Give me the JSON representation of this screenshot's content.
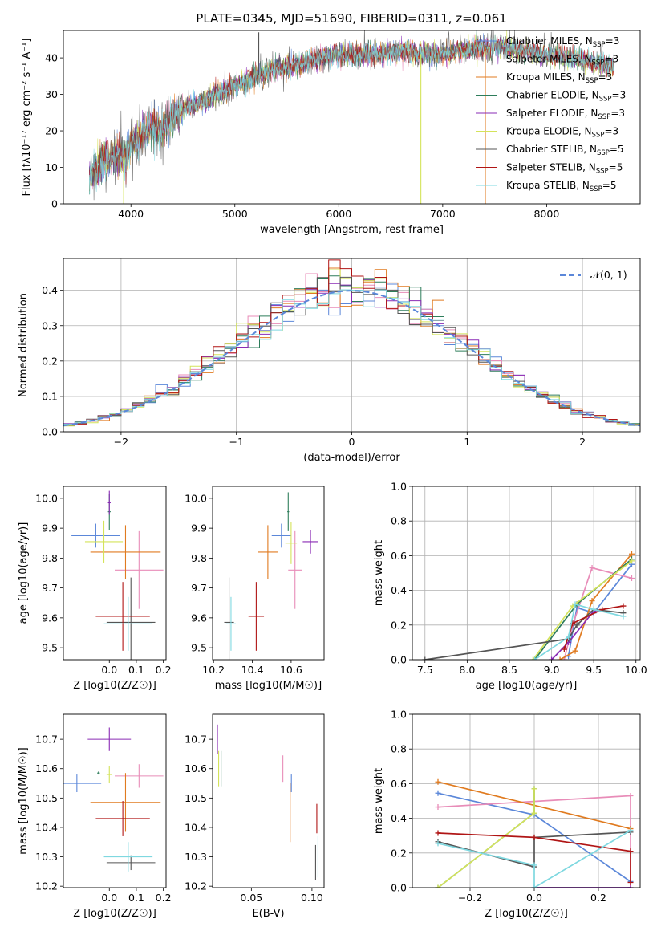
{
  "figure": {
    "title": "PLATE=0345, MJD=51690, FIBERID=0311, z=0.061"
  },
  "legend_text": {
    "prefix": "N",
    "ssp": "SSP",
    "normal": "𝒩(0, 1)"
  },
  "colors": {
    "Chabrier MILES": "#5b87d9",
    "Salpeter MILES": "#e88cb8",
    "Kroupa MILES": "#e07b20",
    "Chabrier ELODIE": "#2e7d5b",
    "Salpeter ELODIE": "#8a2bb5",
    "Kroupa ELODIE": "#d4e35a",
    "Chabrier STELIB": "#555555",
    "Salpeter STELIB": "#b01515",
    "Kroupa STELIB": "#7fd8e0"
  },
  "chart_data": [
    {
      "type": "line",
      "id": "spectrum",
      "title": "PLATE=0345, MJD=51690, FIBERID=0311, z=0.061",
      "xlabel": "wavelength [Angstrom, rest frame]",
      "ylabel": "Flux [fλ10⁻¹⁷ erg cm⁻² s⁻¹ A⁻¹]",
      "xlim": [
        3350,
        8900
      ],
      "ylim": [
        0,
        47.5
      ],
      "xticks": [
        4000,
        5000,
        6000,
        7000,
        8000
      ],
      "yticks": [
        0,
        10,
        20,
        30,
        40
      ],
      "grid": false,
      "legend_placement": "right",
      "legend": [
        {
          "label": "Chabrier MILES, N",
          "n": "3"
        },
        {
          "label": "Salpeter MILES, N",
          "n": "3"
        },
        {
          "label": "Kroupa MILES, N",
          "n": "3"
        },
        {
          "label": "Chabrier ELODIE, N",
          "n": "3"
        },
        {
          "label": "Salpeter ELODIE, N",
          "n": "3"
        },
        {
          "label": "Kroupa ELODIE, N",
          "n": "3"
        },
        {
          "label": "Chabrier STELIB, N",
          "n": "5"
        },
        {
          "label": "Salpeter STELIB, N",
          "n": "5"
        },
        {
          "label": "Kroupa STELIB, N",
          "n": "5"
        }
      ],
      "continuum": {
        "x": [
          3600,
          3700,
          3800,
          3900,
          3950,
          4000,
          4100,
          4200,
          4300,
          4400,
          4500,
          4700,
          4900,
          5000,
          5200,
          5400,
          5600,
          5800,
          6000,
          6200,
          6400,
          6600,
          6800,
          7000,
          7200,
          7400,
          7600,
          7800,
          8000,
          8200,
          8400,
          8600
        ],
        "y": [
          8,
          10,
          13,
          14,
          12,
          16,
          19,
          21,
          20,
          24,
          26,
          28,
          31,
          32,
          35,
          37,
          38,
          40,
          41,
          41,
          41,
          42,
          41,
          41,
          42,
          43,
          43,
          42,
          41,
          40,
          39,
          38
        ]
      },
      "spikes": [
        {
          "x": 3930,
          "y": 0,
          "color": "Kroupa ELODIE"
        },
        {
          "x": 5230,
          "y": 47,
          "color": "Chabrier STELIB"
        },
        {
          "x": 6790,
          "y": 0,
          "color": "Kroupa ELODIE"
        },
        {
          "x": 7410,
          "y": 0,
          "color": "Kroupa MILES"
        }
      ]
    },
    {
      "type": "histogram",
      "id": "residuals",
      "xlabel": "(data-model)/error",
      "ylabel": "Normed distribution",
      "xlim": [
        -2.5,
        2.5
      ],
      "ylim": [
        0,
        0.49
      ],
      "xticks": [
        -2,
        -1,
        0,
        1,
        2
      ],
      "yticks": [
        0.0,
        0.1,
        0.2,
        0.3,
        0.4
      ],
      "grid": true,
      "legend_placement": "top-right",
      "bin_width": 0.1,
      "reference_curve": {
        "name": "𝒩(0, 1)",
        "mean": 0,
        "std": 1,
        "style": "dashed"
      }
    },
    {
      "type": "scatter",
      "id": "age-vs-Z",
      "xlabel": "Z [log10(Z/Z☉)]",
      "ylabel": "age  [log10(age/yr)]",
      "xlim": [
        -0.17,
        0.21
      ],
      "ylim": [
        9.46,
        10.04
      ],
      "xticks": [
        0.0,
        0.1,
        0.2
      ],
      "yticks": [
        9.5,
        9.6,
        9.7,
        9.8,
        9.9,
        10.0
      ],
      "grid": false,
      "points": [
        {
          "m": "Chabrier MILES",
          "x": -0.05,
          "xe": 0.09,
          "y": 9.875,
          "ye": 0.04
        },
        {
          "m": "Salpeter MILES",
          "x": 0.11,
          "xe": 0.09,
          "y": 9.76,
          "ye": 0.13
        },
        {
          "m": "Kroupa MILES",
          "x": 0.06,
          "xe": 0.13,
          "y": 9.82,
          "ye": 0.09
        },
        {
          "m": "Chabrier ELODIE",
          "x": 0.0,
          "xe": 0.005,
          "y": 9.955,
          "ye": 0.06
        },
        {
          "m": "Salpeter ELODIE",
          "x": 0.0,
          "xe": 0.005,
          "y": 9.985,
          "ye": 0.04
        },
        {
          "m": "Kroupa ELODIE",
          "x": -0.02,
          "xe": 0.07,
          "y": 9.855,
          "ye": 0.07
        },
        {
          "m": "Chabrier STELIB",
          "x": 0.08,
          "xe": 0.09,
          "y": 9.585,
          "ye": 0.15
        },
        {
          "m": "Salpeter STELIB",
          "x": 0.05,
          "xe": 0.1,
          "y": 9.605,
          "ye": 0.115
        },
        {
          "m": "Kroupa STELIB",
          "x": 0.07,
          "xe": 0.09,
          "y": 9.58,
          "ye": 0.09
        }
      ]
    },
    {
      "type": "scatter",
      "id": "age-vs-mass",
      "xlabel": "mass [log10(M/M☉)]",
      "ylabel": "",
      "xlim": [
        10.195,
        10.77
      ],
      "ylim": [
        9.46,
        10.04
      ],
      "xticks": [
        10.2,
        10.4,
        10.6
      ],
      "yticks": [
        9.5,
        9.6,
        9.7,
        9.8,
        9.9,
        10.0
      ],
      "grid": false,
      "points": [
        {
          "m": "Chabrier MILES",
          "x": 10.55,
          "xe": 0.05,
          "y": 9.875,
          "ye": 0.04
        },
        {
          "m": "Salpeter MILES",
          "x": 10.62,
          "xe": 0.035,
          "y": 9.76,
          "ye": 0.13
        },
        {
          "m": "Kroupa MILES",
          "x": 10.48,
          "xe": 0.05,
          "y": 9.82,
          "ye": 0.09
        },
        {
          "m": "Chabrier ELODIE",
          "x": 10.585,
          "xe": 0.005,
          "y": 9.955,
          "ye": 0.065
        },
        {
          "m": "Salpeter ELODIE",
          "x": 10.7,
          "xe": 0.04,
          "y": 9.855,
          "ye": 0.04
        },
        {
          "m": "Kroupa ELODIE",
          "x": 10.6,
          "xe": 0.03,
          "y": 9.85,
          "ye": 0.07
        },
        {
          "m": "Chabrier STELIB",
          "x": 10.28,
          "xe": 0.025,
          "y": 9.585,
          "ye": 0.15
        },
        {
          "m": "Salpeter STELIB",
          "x": 10.42,
          "xe": 0.04,
          "y": 9.605,
          "ye": 0.115
        },
        {
          "m": "Kroupa STELIB",
          "x": 10.29,
          "xe": 0.025,
          "y": 9.58,
          "ye": 0.09
        }
      ]
    },
    {
      "type": "line",
      "id": "weight-vs-age",
      "xlabel": "age  [log10(age/yr)]",
      "ylabel": "mass weight",
      "xlim": [
        7.35,
        10.05
      ],
      "ylim": [
        0,
        1
      ],
      "xticks": [
        7.5,
        8.0,
        8.5,
        9.0,
        9.5,
        10.0
      ],
      "yticks": [
        0.0,
        0.2,
        0.4,
        0.6,
        0.8,
        1.0
      ],
      "grid": true,
      "series": [
        {
          "m": "Chabrier MILES",
          "x": [
            9.2,
            9.3,
            9.5,
            9.95
          ],
          "y": [
            0.02,
            0.3,
            0.27,
            0.55
          ]
        },
        {
          "m": "Salpeter MILES",
          "x": [
            9.15,
            9.25,
            9.48,
            9.95
          ],
          "y": [
            0.0,
            0.2,
            0.53,
            0.47
          ]
        },
        {
          "m": "Kroupa MILES",
          "x": [
            9.1,
            9.28,
            9.48,
            9.95
          ],
          "y": [
            0.0,
            0.05,
            0.34,
            0.61
          ]
        },
        {
          "m": "Chabrier ELODIE",
          "x": [
            8.8,
            9.3,
            9.95
          ],
          "y": [
            0.0,
            0.32,
            0.58
          ]
        },
        {
          "m": "Salpeter ELODIE",
          "x": [
            9.0,
            9.2,
            9.5
          ],
          "y": [
            0.0,
            0.1,
            0.28
          ]
        },
        {
          "m": "Kroupa ELODIE",
          "x": [
            8.78,
            9.25,
            9.95
          ],
          "y": [
            0.0,
            0.31,
            0.57
          ]
        },
        {
          "m": "Chabrier STELIB",
          "x": [
            7.5,
            9.2,
            9.3,
            9.5,
            9.85
          ],
          "y": [
            0.0,
            0.12,
            0.2,
            0.29,
            0.27
          ]
        },
        {
          "m": "Salpeter STELIB",
          "x": [
            9.15,
            9.25,
            9.6,
            9.85
          ],
          "y": [
            0.06,
            0.21,
            0.29,
            0.31
          ]
        },
        {
          "m": "Kroupa STELIB",
          "x": [
            8.8,
            9.2,
            9.28,
            9.5,
            9.85
          ],
          "y": [
            0.0,
            0.13,
            0.32,
            0.29,
            0.25
          ]
        }
      ]
    },
    {
      "type": "scatter",
      "id": "mass-vs-Z",
      "xlabel": "Z [log10(Z/Z☉)]",
      "ylabel": "mass [log10(M/M☉)]",
      "xlim": [
        -0.17,
        0.21
      ],
      "ylim": [
        10.195,
        10.785
      ],
      "xticks": [
        0.0,
        0.1,
        0.2
      ],
      "yticks": [
        10.2,
        10.3,
        10.4,
        10.5,
        10.6,
        10.7
      ],
      "grid": false,
      "points": [
        {
          "m": "Chabrier MILES",
          "x": -0.12,
          "xe": 0.09,
          "y": 10.55,
          "ye": 0.03
        },
        {
          "m": "Salpeter MILES",
          "x": 0.11,
          "xe": 0.09,
          "y": 10.575,
          "ye": 0.04
        },
        {
          "m": "Kroupa MILES",
          "x": 0.06,
          "xe": 0.13,
          "y": 10.485,
          "ye": 0.1
        },
        {
          "m": "Chabrier ELODIE",
          "x": -0.04,
          "xe": 0.005,
          "y": 10.585,
          "ye": 0.005
        },
        {
          "m": "Salpeter ELODIE",
          "x": 0.0,
          "xe": 0.08,
          "y": 10.7,
          "ye": 0.04
        },
        {
          "m": "Kroupa ELODIE",
          "x": 0.0,
          "xe": 0.01,
          "y": 10.58,
          "ye": 0.03
        },
        {
          "m": "Chabrier STELIB",
          "x": 0.08,
          "xe": 0.09,
          "y": 10.28,
          "ye": 0.025
        },
        {
          "m": "Salpeter STELIB",
          "x": 0.05,
          "xe": 0.1,
          "y": 10.43,
          "ye": 0.06
        },
        {
          "m": "Kroupa STELIB",
          "x": 0.07,
          "xe": 0.09,
          "y": 10.3,
          "ye": 0.05
        }
      ]
    },
    {
      "type": "scatter",
      "id": "mass-vs-ebv",
      "xlabel": "E(B-V)",
      "ylabel": "",
      "xlim": [
        0.018,
        0.11
      ],
      "ylim": [
        10.195,
        10.785
      ],
      "xticks": [
        0.05,
        0.1
      ],
      "yticks": [
        10.2,
        10.3,
        10.4,
        10.5,
        10.6,
        10.7
      ],
      "grid": false,
      "points": [
        {
          "m": "Chabrier MILES",
          "x": 0.083,
          "xe": 0.0,
          "y": 10.55,
          "ye": 0.03
        },
        {
          "m": "Salpeter MILES",
          "x": 0.076,
          "xe": 0.0,
          "y": 10.6,
          "ye": 0.045
        },
        {
          "m": "Kroupa MILES",
          "x": 0.082,
          "xe": 0.0,
          "y": 10.45,
          "ye": 0.1
        },
        {
          "m": "Chabrier ELODIE",
          "x": 0.025,
          "xe": 0.0,
          "y": 10.6,
          "ye": 0.06
        },
        {
          "m": "Salpeter ELODIE",
          "x": 0.022,
          "xe": 0.0,
          "y": 10.7,
          "ye": 0.05
        },
        {
          "m": "Kroupa ELODIE",
          "x": 0.023,
          "xe": 0.0,
          "y": 10.6,
          "ye": 0.06
        },
        {
          "m": "Chabrier STELIB",
          "x": 0.103,
          "xe": 0.0,
          "y": 10.28,
          "ye": 0.06
        },
        {
          "m": "Salpeter STELIB",
          "x": 0.104,
          "xe": 0.0,
          "y": 10.43,
          "ye": 0.05
        },
        {
          "m": "Kroupa STELIB",
          "x": 0.105,
          "xe": 0.0,
          "y": 10.3,
          "ye": 0.07
        }
      ]
    },
    {
      "type": "line",
      "id": "weight-vs-Z",
      "xlabel": "Z [log10(Z/Z☉)]",
      "ylabel": "mass weight",
      "xlim": [
        -0.38,
        0.33
      ],
      "ylim": [
        0,
        1
      ],
      "xticks": [
        -0.2,
        0.0,
        0.2
      ],
      "yticks": [
        0.0,
        0.2,
        0.4,
        0.6,
        0.8,
        1.0
      ],
      "grid": true,
      "series": [
        {
          "m": "Chabrier MILES",
          "x": [
            -0.3,
            0.0,
            0.3
          ],
          "y": [
            0.545,
            0.42,
            0.035
          ]
        },
        {
          "m": "Salpeter MILES",
          "x": [
            -0.3,
            0.3,
            0.3
          ],
          "y": [
            0.465,
            0.53,
            0.0
          ]
        },
        {
          "m": "Kroupa MILES",
          "x": [
            -0.3,
            0.3
          ],
          "y": [
            0.61,
            0.34
          ]
        },
        {
          "m": "Chabrier ELODIE",
          "x": [
            -0.3,
            0.0,
            0.0
          ],
          "y": [
            0.0,
            0.43,
            0.57
          ]
        },
        {
          "m": "Salpeter ELODIE",
          "x": [
            0.0,
            0.3
          ],
          "y": [
            0.0,
            0.0
          ]
        },
        {
          "m": "Kroupa ELODIE",
          "x": [
            -0.3,
            0.0,
            0.0
          ],
          "y": [
            0.0,
            0.43,
            0.57
          ]
        },
        {
          "m": "Chabrier STELIB",
          "x": [
            -0.3,
            0.0,
            0.0,
            0.3
          ],
          "y": [
            0.265,
            0.12,
            0.29,
            0.32
          ]
        },
        {
          "m": "Salpeter STELIB",
          "x": [
            -0.3,
            0.0,
            0.3,
            0.3
          ],
          "y": [
            0.315,
            0.29,
            0.21,
            0.03
          ]
        },
        {
          "m": "Kroupa STELIB",
          "x": [
            -0.3,
            0.0,
            0.0,
            0.3
          ],
          "y": [
            0.255,
            0.13,
            0.0,
            0.33
          ]
        }
      ]
    }
  ]
}
